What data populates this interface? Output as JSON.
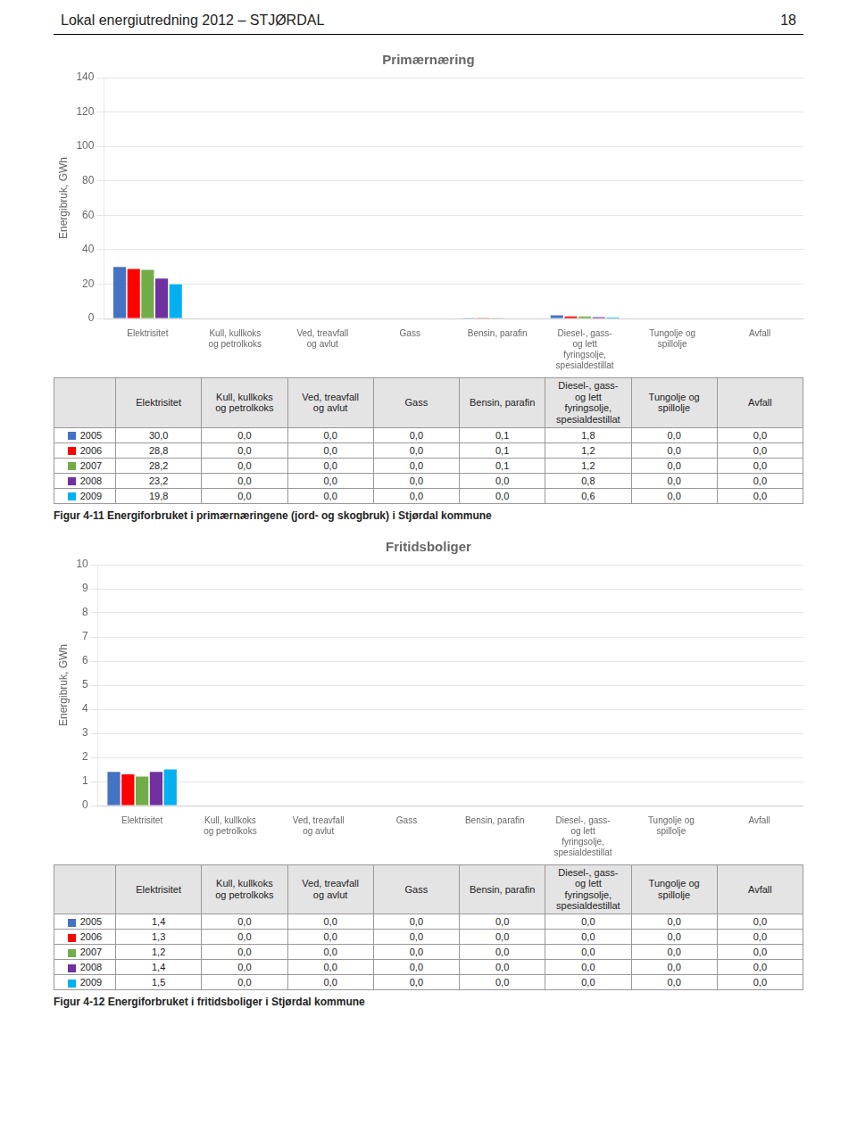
{
  "page_title": "Lokal energiutredning 2012 – STJØRDAL",
  "page_number": "18",
  "chart_data": [
    {
      "type": "bar",
      "title": "Primærnæring",
      "ylabel": "Energibruk, GWh",
      "categories": [
        "Elektrisitet",
        "Kull, kullkoks\nog petrolkoks",
        "Ved, treavfall\nog avlut",
        "Gass",
        "Bensin, parafin",
        "Diesel-, gass-\nog lett\nfyringsolje,\nspesialdestillat",
        "Tungolje og\nspillolje",
        "Avfall"
      ],
      "series": [
        {
          "name": "2005",
          "color": "#4472C4",
          "values": [
            30.0,
            0.0,
            0.0,
            0.0,
            0.1,
            1.8,
            0.0,
            0.0
          ],
          "value_labels": [
            "30,0",
            "0,0",
            "0,0",
            "0,0",
            "0,1",
            "1,8",
            "0,0",
            "0,0"
          ]
        },
        {
          "name": "2006",
          "color": "#FF0000",
          "values": [
            28.8,
            0.0,
            0.0,
            0.0,
            0.1,
            1.2,
            0.0,
            0.0
          ],
          "value_labels": [
            "28,8",
            "0,0",
            "0,0",
            "0,0",
            "0,1",
            "1,2",
            "0,0",
            "0,0"
          ]
        },
        {
          "name": "2007",
          "color": "#70AD47",
          "values": [
            28.2,
            0.0,
            0.0,
            0.0,
            0.1,
            1.2,
            0.0,
            0.0
          ],
          "value_labels": [
            "28,2",
            "0,0",
            "0,0",
            "0,0",
            "0,1",
            "1,2",
            "0,0",
            "0,0"
          ]
        },
        {
          "name": "2008",
          "color": "#7030A0",
          "values": [
            23.2,
            0.0,
            0.0,
            0.0,
            0.0,
            0.8,
            0.0,
            0.0
          ],
          "value_labels": [
            "23,2",
            "0,0",
            "0,0",
            "0,0",
            "0,0",
            "0,8",
            "0,0",
            "0,0"
          ]
        },
        {
          "name": "2009",
          "color": "#00B0F0",
          "values": [
            19.8,
            0.0,
            0.0,
            0.0,
            0.0,
            0.6,
            0.0,
            0.0
          ],
          "value_labels": [
            "19,8",
            "0,0",
            "0,0",
            "0,0",
            "0,0",
            "0,6",
            "0,0",
            "0,0"
          ]
        }
      ],
      "ylim": [
        0,
        140
      ],
      "yticks": [
        0,
        20,
        40,
        60,
        80,
        100,
        120,
        140
      ],
      "grid": true,
      "caption": "Figur 4-11 Energiforbruket i primærnæringene (jord- og skogbruk) i Stjørdal kommune"
    },
    {
      "type": "bar",
      "title": "Fritidsboliger",
      "ylabel": "Energibruk, GWh",
      "categories": [
        "Elektrisitet",
        "Kull, kullkoks\nog petrolkoks",
        "Ved, treavfall\nog avlut",
        "Gass",
        "Bensin, parafin",
        "Diesel-, gass-\nog lett\nfyringsolje,\nspesialdestillat",
        "Tungolje og\nspillolje",
        "Avfall"
      ],
      "series": [
        {
          "name": "2005",
          "color": "#4472C4",
          "values": [
            1.4,
            0.0,
            0.0,
            0.0,
            0.0,
            0.0,
            0.0,
            0.0
          ],
          "value_labels": [
            "1,4",
            "0,0",
            "0,0",
            "0,0",
            "0,0",
            "0,0",
            "0,0",
            "0,0"
          ]
        },
        {
          "name": "2006",
          "color": "#FF0000",
          "values": [
            1.3,
            0.0,
            0.0,
            0.0,
            0.0,
            0.0,
            0.0,
            0.0
          ],
          "value_labels": [
            "1,3",
            "0,0",
            "0,0",
            "0,0",
            "0,0",
            "0,0",
            "0,0",
            "0,0"
          ]
        },
        {
          "name": "2007",
          "color": "#70AD47",
          "values": [
            1.2,
            0.0,
            0.0,
            0.0,
            0.0,
            0.0,
            0.0,
            0.0
          ],
          "value_labels": [
            "1,2",
            "0,0",
            "0,0",
            "0,0",
            "0,0",
            "0,0",
            "0,0",
            "0,0"
          ]
        },
        {
          "name": "2008",
          "color": "#7030A0",
          "values": [
            1.4,
            0.0,
            0.0,
            0.0,
            0.0,
            0.0,
            0.0,
            0.0
          ],
          "value_labels": [
            "1,4",
            "0,0",
            "0,0",
            "0,0",
            "0,0",
            "0,0",
            "0,0",
            "0,0"
          ]
        },
        {
          "name": "2009",
          "color": "#00B0F0",
          "values": [
            1.5,
            0.0,
            0.0,
            0.0,
            0.0,
            0.0,
            0.0,
            0.0
          ],
          "value_labels": [
            "1,5",
            "0,0",
            "0,0",
            "0,0",
            "0,0",
            "0,0",
            "0,0",
            "0,0"
          ]
        }
      ],
      "ylim": [
        0,
        10
      ],
      "yticks": [
        0,
        1,
        2,
        3,
        4,
        5,
        6,
        7,
        8,
        9,
        10
      ],
      "grid": true,
      "caption": "Figur 4-12 Energiforbruket i fritidsboliger i Stjørdal kommune"
    }
  ]
}
